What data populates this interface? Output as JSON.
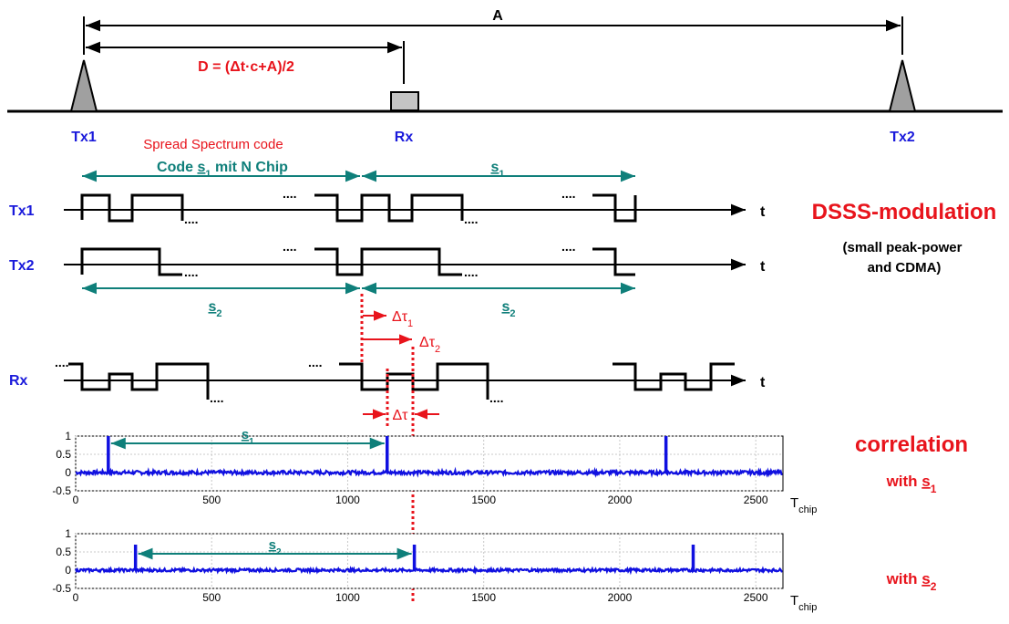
{
  "geometry_labels": {
    "distance_a": "A",
    "distance_d": "D = (Δt·c+A)/2",
    "tx1": "Tx1",
    "rx": "Rx",
    "tx2": "Tx2"
  },
  "signals": {
    "ss_code_label": "Spread Spectrum code",
    "code_s1_prefix": "Code ",
    "code_s1_letter": "s",
    "code_s1_sub": "1",
    "code_s1_suffix": " mit N Chip",
    "s1_letter": "s",
    "s1_sub": "1",
    "s2_letter": "s",
    "s2_sub": "2",
    "row_tx1": "Tx1",
    "row_tx2": "Tx2",
    "row_rx": "Rx",
    "time_axis": "t",
    "dots": "....",
    "delta_tau1_main": "Δτ",
    "delta_tau1_sub": "1",
    "delta_tau2_main": "Δτ",
    "delta_tau2_sub": "2",
    "delta_tau": "Δτ"
  },
  "side_labels": {
    "dsss_title": "DSSS-modulation",
    "dsss_note_line1": "(small peak-power",
    "dsss_note_line2": "and CDMA)",
    "correlation_title": "correlation",
    "with1_prefix": "with ",
    "with1_letter": "s",
    "with1_sub": "1",
    "with2_prefix": "with ",
    "with2_letter": "s",
    "with2_sub": "2"
  },
  "colors": {
    "label_blue": "#1a1adb",
    "accent_red": "#e8141c",
    "teal": "#0f7f7a",
    "trace_blue": "#1010e0",
    "grid": "#c8c8c8",
    "tower_fill": "#a0a0a0"
  },
  "chart_data": [
    {
      "type": "line",
      "name": "correlation with s1",
      "xlabel_main": "T",
      "xlabel_sub": "chip",
      "xlim": [
        0,
        2600
      ],
      "ylim": [
        -0.5,
        1
      ],
      "xticks": [
        0,
        500,
        1000,
        1500,
        2000,
        2500
      ],
      "xtick_labels": [
        "0",
        "500",
        "1000",
        "1500",
        "2000",
        "2500"
      ],
      "yticks": [
        -0.5,
        0,
        0.5,
        1
      ],
      "ytick_labels": [
        "-0.5",
        "0",
        "0.5",
        "1"
      ],
      "grid": true,
      "peaks": [
        {
          "x": 120,
          "y": 1.0
        },
        {
          "x": 1145,
          "y": 1.0
        },
        {
          "x": 2170,
          "y": 1.0
        }
      ],
      "noise_amplitude": 0.05,
      "annotation": {
        "letter": "s",
        "sub": "1",
        "x_start": 120,
        "x_end": 1145,
        "y": 0.8
      }
    },
    {
      "type": "line",
      "name": "correlation with s2",
      "xlabel_main": "T",
      "xlabel_sub": "chip",
      "xlim": [
        0,
        2600
      ],
      "ylim": [
        -0.5,
        1
      ],
      "xticks": [
        0,
        500,
        1000,
        1500,
        2000,
        2500
      ],
      "xtick_labels": [
        "0",
        "500",
        "1000",
        "1500",
        "2000",
        "2500"
      ],
      "yticks": [
        -0.5,
        0,
        0.5,
        1
      ],
      "ytick_labels": [
        "-0.5",
        "0",
        "0.5",
        "1"
      ],
      "grid": true,
      "peaks": [
        {
          "x": 220,
          "y": 0.7
        },
        {
          "x": 1245,
          "y": 0.7
        },
        {
          "x": 2270,
          "y": 0.7
        }
      ],
      "noise_amplitude": 0.04,
      "annotation": {
        "letter": "s",
        "sub": "2",
        "x_start": 220,
        "x_end": 1245,
        "y": 0.45
      }
    }
  ]
}
